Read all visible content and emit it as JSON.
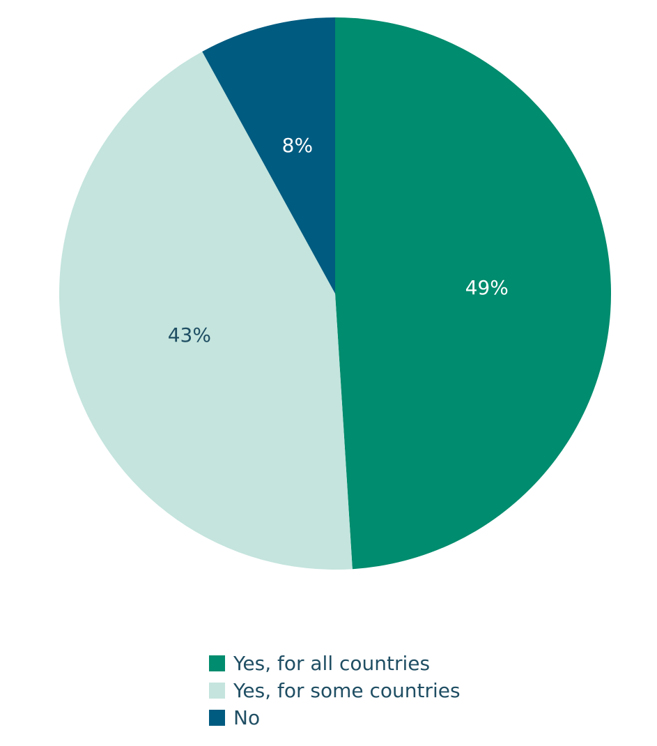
{
  "chart_data": {
    "type": "pie",
    "title": "",
    "legend_position": "bottom",
    "start_angle_deg": 0,
    "direction": "clockwise",
    "slices": [
      {
        "label": "Yes, for all countries",
        "value": 49,
        "display": "49%",
        "color": "#008c6e",
        "text_color": "#ffffff"
      },
      {
        "label": "Yes, for some countries",
        "value": 43,
        "display": "43%",
        "color": "#c4e4dd",
        "text_color": "#1f4e63"
      },
      {
        "label": "No",
        "value": 8,
        "display": "8%",
        "color": "#005b80",
        "text_color": "#ffffff"
      }
    ]
  }
}
